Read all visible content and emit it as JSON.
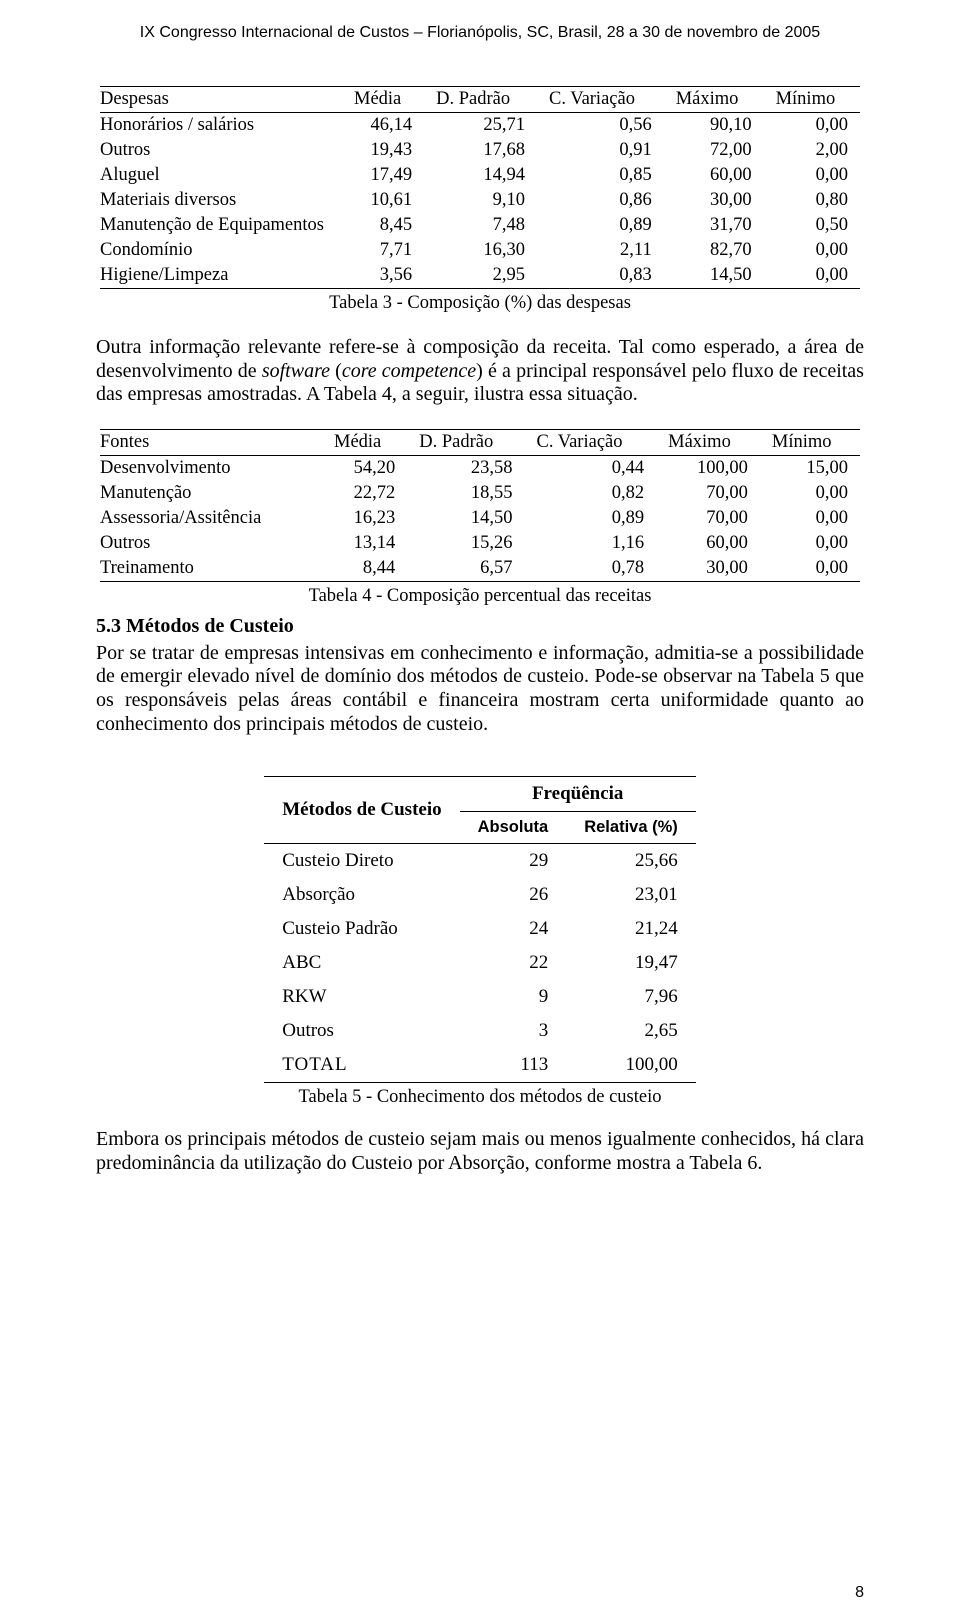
{
  "running_head": "IX Congresso Internacional de Custos – Florianópolis, SC, Brasil, 28 a 30 de novembro de 2005",
  "page_number": "8",
  "table3": {
    "columns": [
      "Despesas",
      "Média",
      "D. Padrão",
      "C. Variação",
      "Máximo",
      "Mínimo"
    ],
    "rows": [
      [
        "Honorários / salários",
        "46,14",
        "25,71",
        "0,56",
        "90,10",
        "0,00"
      ],
      [
        "Outros",
        "19,43",
        "17,68",
        "0,91",
        "72,00",
        "2,00"
      ],
      [
        "Aluguel",
        "17,49",
        "14,94",
        "0,85",
        "60,00",
        "0,00"
      ],
      [
        "Materiais diversos",
        "10,61",
        "9,10",
        "0,86",
        "30,00",
        "0,80"
      ],
      [
        "Manutenção de Equipamentos",
        "8,45",
        "7,48",
        "0,89",
        "31,70",
        "0,50"
      ],
      [
        "Condomínio",
        "7,71",
        "16,30",
        "2,11",
        "82,70",
        "0,00"
      ],
      [
        "Higiene/Limpeza",
        "3,56",
        "2,95",
        "0,83",
        "14,50",
        "0,00"
      ]
    ],
    "caption": "Tabela 3 - Composição (%) das despesas"
  },
  "p1_a": "Outra informação relevante refere-se à composição da receita. Tal como esperado, a área de desenvolvimento de ",
  "p1_it1": "software",
  "p1_b": " (",
  "p1_it2": "core competence",
  "p1_c": ") é a principal responsável pelo fluxo de receitas das empresas amostradas. A Tabela 4, a seguir, ilustra essa situação.",
  "table4": {
    "columns": [
      "Fontes",
      "Média",
      "D. Padrão",
      "C. Variação",
      "Máximo",
      "Mínimo"
    ],
    "rows": [
      [
        "Desenvolvimento",
        "54,20",
        "23,58",
        "0,44",
        "100,00",
        "15,00"
      ],
      [
        "Manutenção",
        "22,72",
        "18,55",
        "0,82",
        "70,00",
        "0,00"
      ],
      [
        "Assessoria/Assitência",
        "16,23",
        "14,50",
        "0,89",
        "70,00",
        "0,00"
      ],
      [
        "Outros",
        "13,14",
        "15,26",
        "1,16",
        "60,00",
        "0,00"
      ],
      [
        "Treinamento",
        "8,44",
        "6,57",
        "0,78",
        "30,00",
        "0,00"
      ]
    ],
    "caption": "Tabela 4 - Composição percentual das receitas"
  },
  "section53": "5.3 Métodos de Custeio",
  "p2": "Por se tratar de empresas intensivas em conhecimento e informação, admitia-se a possibilidade de emergir elevado nível de domínio dos métodos de custeio. Pode-se observar na Tabela 5 que os responsáveis pelas áreas contábil e financeira mostram certa uniformidade quanto ao conhecimento dos principais métodos de custeio.",
  "table5": {
    "header_methods": "Métodos de Custeio",
    "header_freq": "Freqüência",
    "sub_abs": "Absoluta",
    "sub_rel": "Relativa (%)",
    "rows": [
      [
        "Custeio Direto",
        "29",
        "25,66"
      ],
      [
        "Absorção",
        "26",
        "23,01"
      ],
      [
        "Custeio Padrão",
        "24",
        "21,24"
      ],
      [
        "ABC",
        "22",
        "19,47"
      ],
      [
        "RKW",
        "9",
        "7,96"
      ],
      [
        "Outros",
        "3",
        "2,65"
      ]
    ],
    "total_row": [
      "TOTAL",
      "113",
      "100,00"
    ],
    "caption": "Tabela 5 - Conhecimento dos métodos de custeio"
  },
  "p3": "Embora os principais métodos de custeio sejam mais ou menos igualmente conhecidos, há clara predominância da utilização do Custeio por Absorção, conforme mostra a Tabela 6."
}
